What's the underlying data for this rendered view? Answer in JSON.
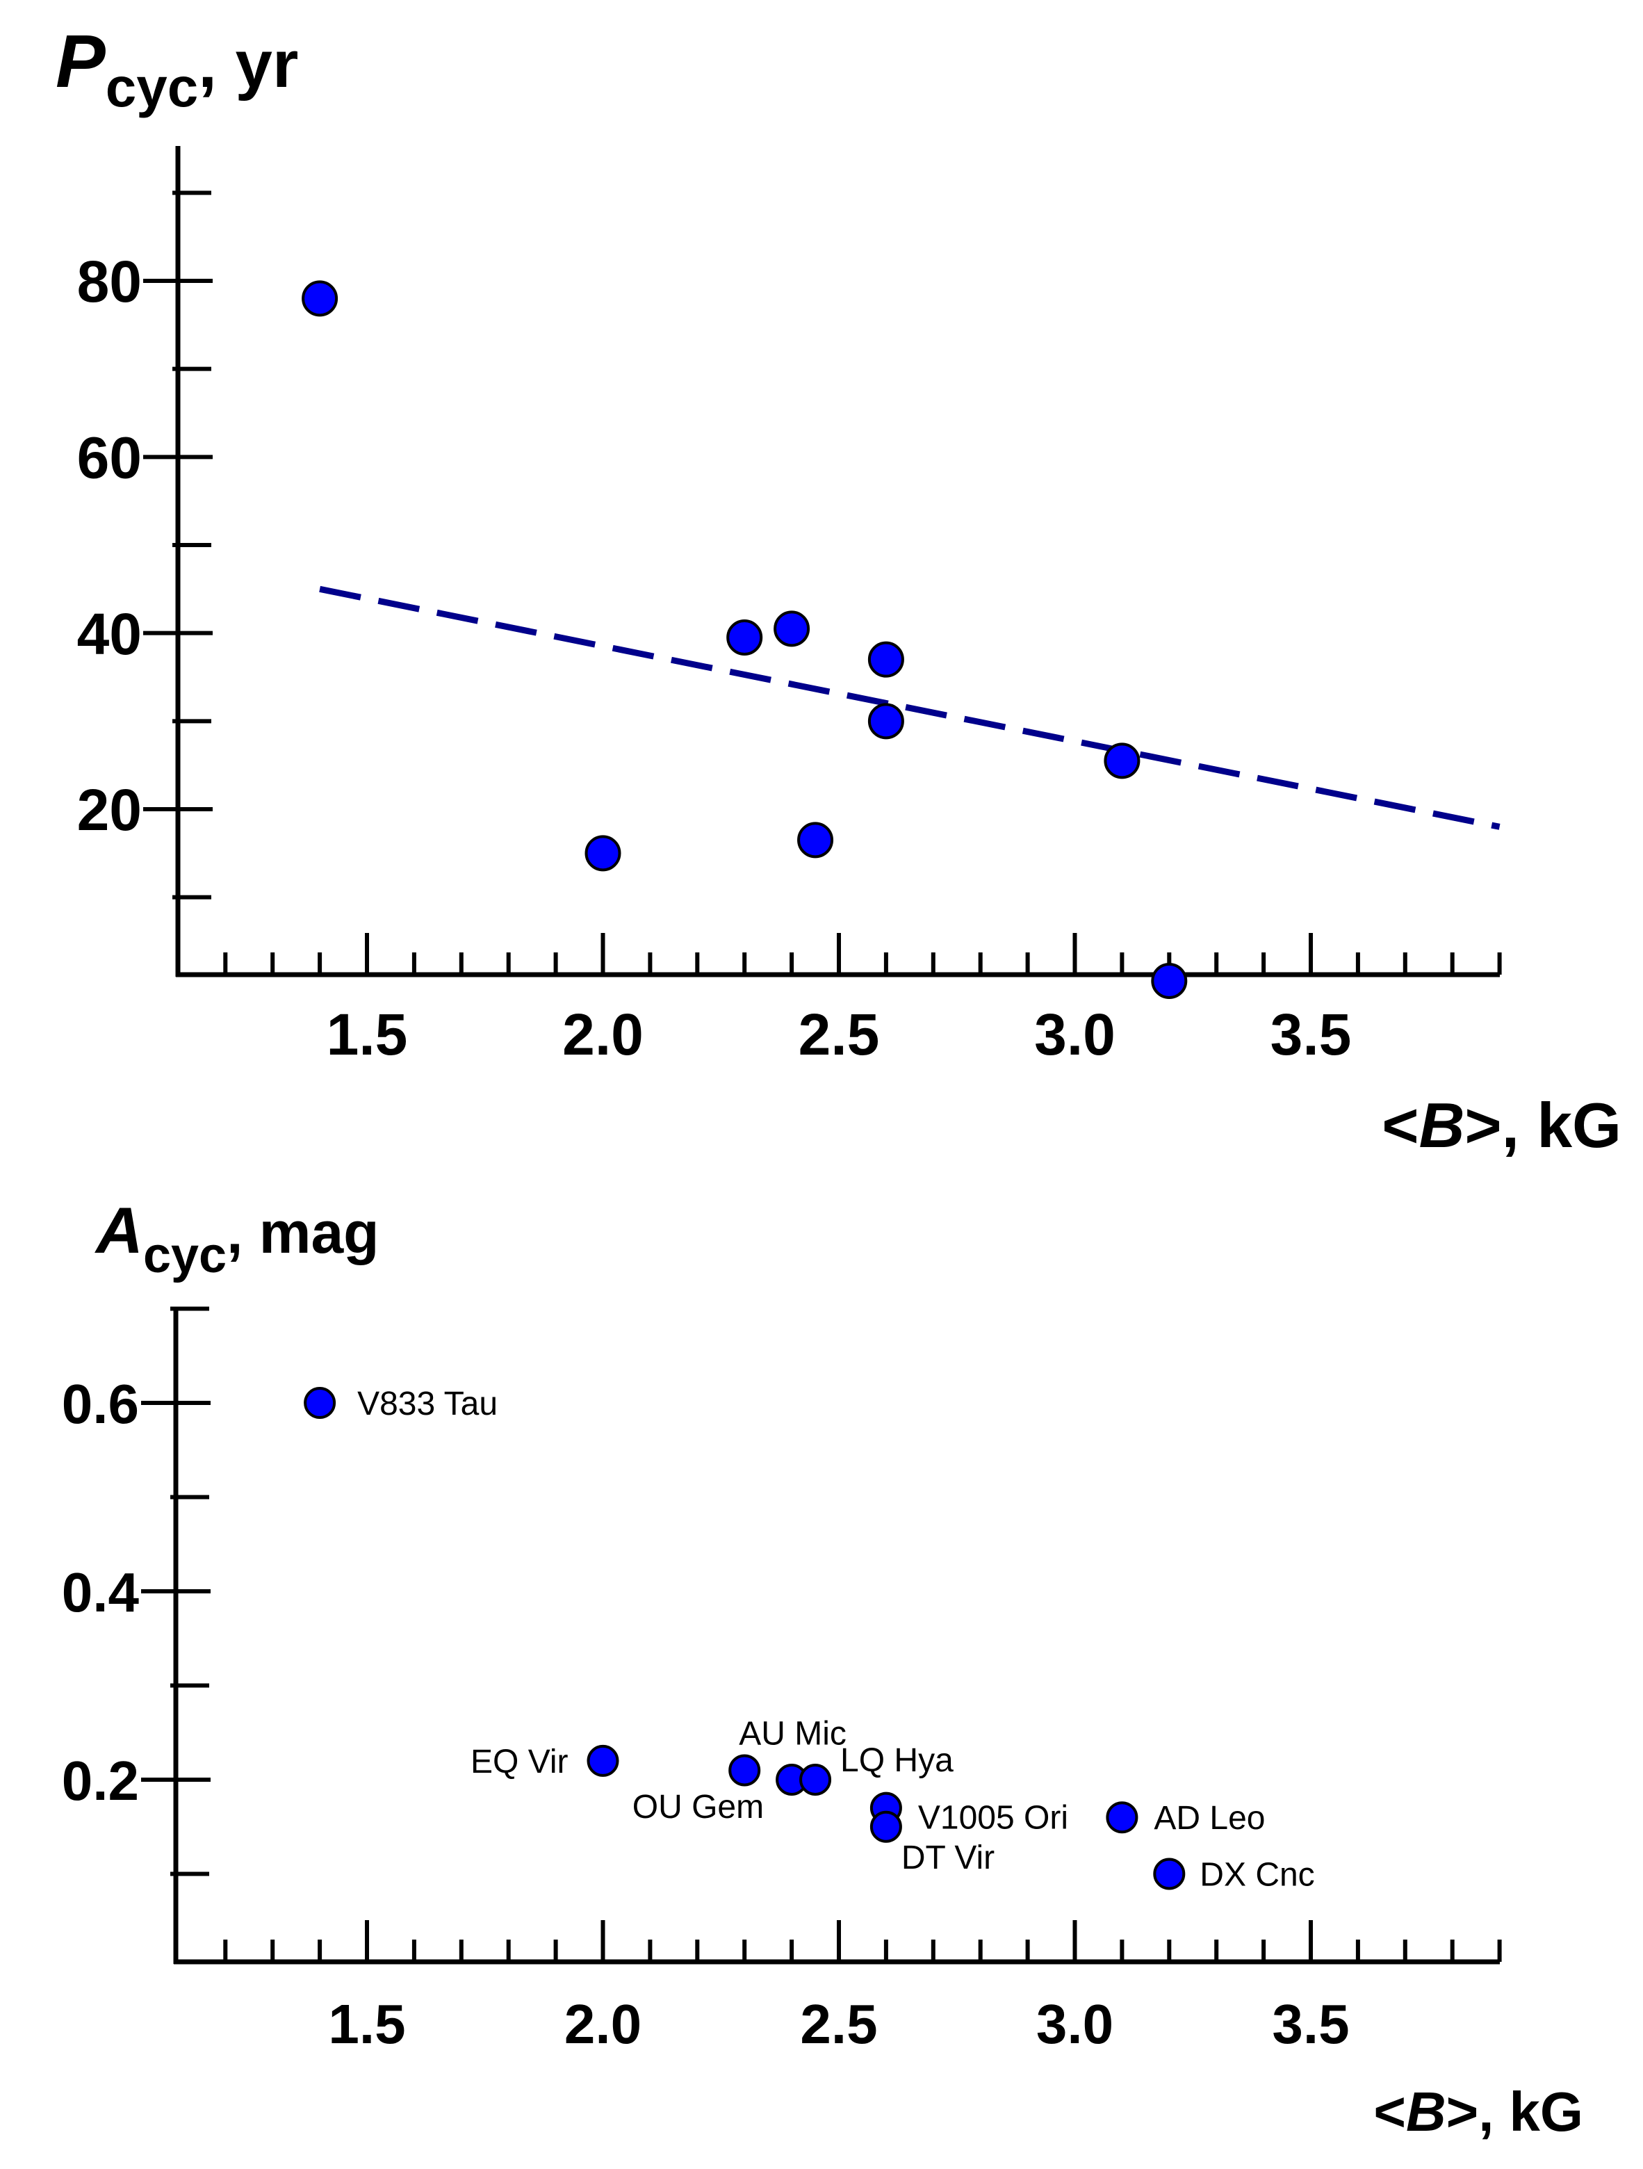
{
  "chart_data": [
    {
      "type": "scatter",
      "title": "",
      "ylabel": {
        "symbol": "P",
        "subscript": "cyc",
        "unit": ", yr"
      },
      "xlabel": {
        "prefix": "<",
        "symbol": "B",
        "suffix": ">, kG"
      },
      "xlim": [
        1.1,
        3.9
      ],
      "ylim": [
        0,
        95
      ],
      "x_ticks": [
        "1.5",
        "2.0",
        "2.5",
        "3.0",
        "3.5"
      ],
      "y_ticks": [
        "20",
        "40",
        "60",
        "80"
      ],
      "grid": false,
      "point_color": "#0000ff",
      "points": [
        {
          "x": 1.4,
          "y": 78
        },
        {
          "x": 2.0,
          "y": 15
        },
        {
          "x": 2.3,
          "y": 39.5
        },
        {
          "x": 2.4,
          "y": 40.5
        },
        {
          "x": 2.45,
          "y": 16.5
        },
        {
          "x": 2.6,
          "y": 37
        },
        {
          "x": 2.6,
          "y": 30
        },
        {
          "x": 3.1,
          "y": 25.5
        },
        {
          "x": 3.2,
          "y": 0.5
        }
      ],
      "trend_line": {
        "style": "dashed",
        "color": "#00008b",
        "x": [
          1.4,
          3.9
        ],
        "y": [
          45,
          18
        ]
      }
    },
    {
      "type": "scatter",
      "title": "",
      "ylabel": {
        "symbol": "A",
        "subscript": "cyc",
        "unit": ", mag"
      },
      "xlabel": {
        "prefix": "<",
        "symbol": "B",
        "suffix": ">, kG"
      },
      "xlim": [
        1.1,
        3.9
      ],
      "ylim": [
        0,
        0.7
      ],
      "x_ticks": [
        "1.5",
        "2.0",
        "2.5",
        "3.0",
        "3.5"
      ],
      "y_ticks": [
        "0.2",
        "0.4",
        "0.6"
      ],
      "grid": false,
      "point_color": "#0000ff",
      "points": [
        {
          "x": 1.4,
          "y": 0.6,
          "label": "V833 Tau"
        },
        {
          "x": 2.0,
          "y": 0.22,
          "label": "EQ Vir"
        },
        {
          "x": 2.3,
          "y": 0.21,
          "label": "AU Mic"
        },
        {
          "x": 2.4,
          "y": 0.2,
          "label": "OU Gem"
        },
        {
          "x": 2.45,
          "y": 0.2,
          "label": "LQ Hya"
        },
        {
          "x": 2.6,
          "y": 0.17,
          "label": "V1005 Ori"
        },
        {
          "x": 2.6,
          "y": 0.15,
          "label": "DT Vir"
        },
        {
          "x": 3.1,
          "y": 0.16,
          "label": "AD Leo"
        },
        {
          "x": 3.2,
          "y": 0.1,
          "label": "DX Cnc"
        }
      ]
    }
  ]
}
